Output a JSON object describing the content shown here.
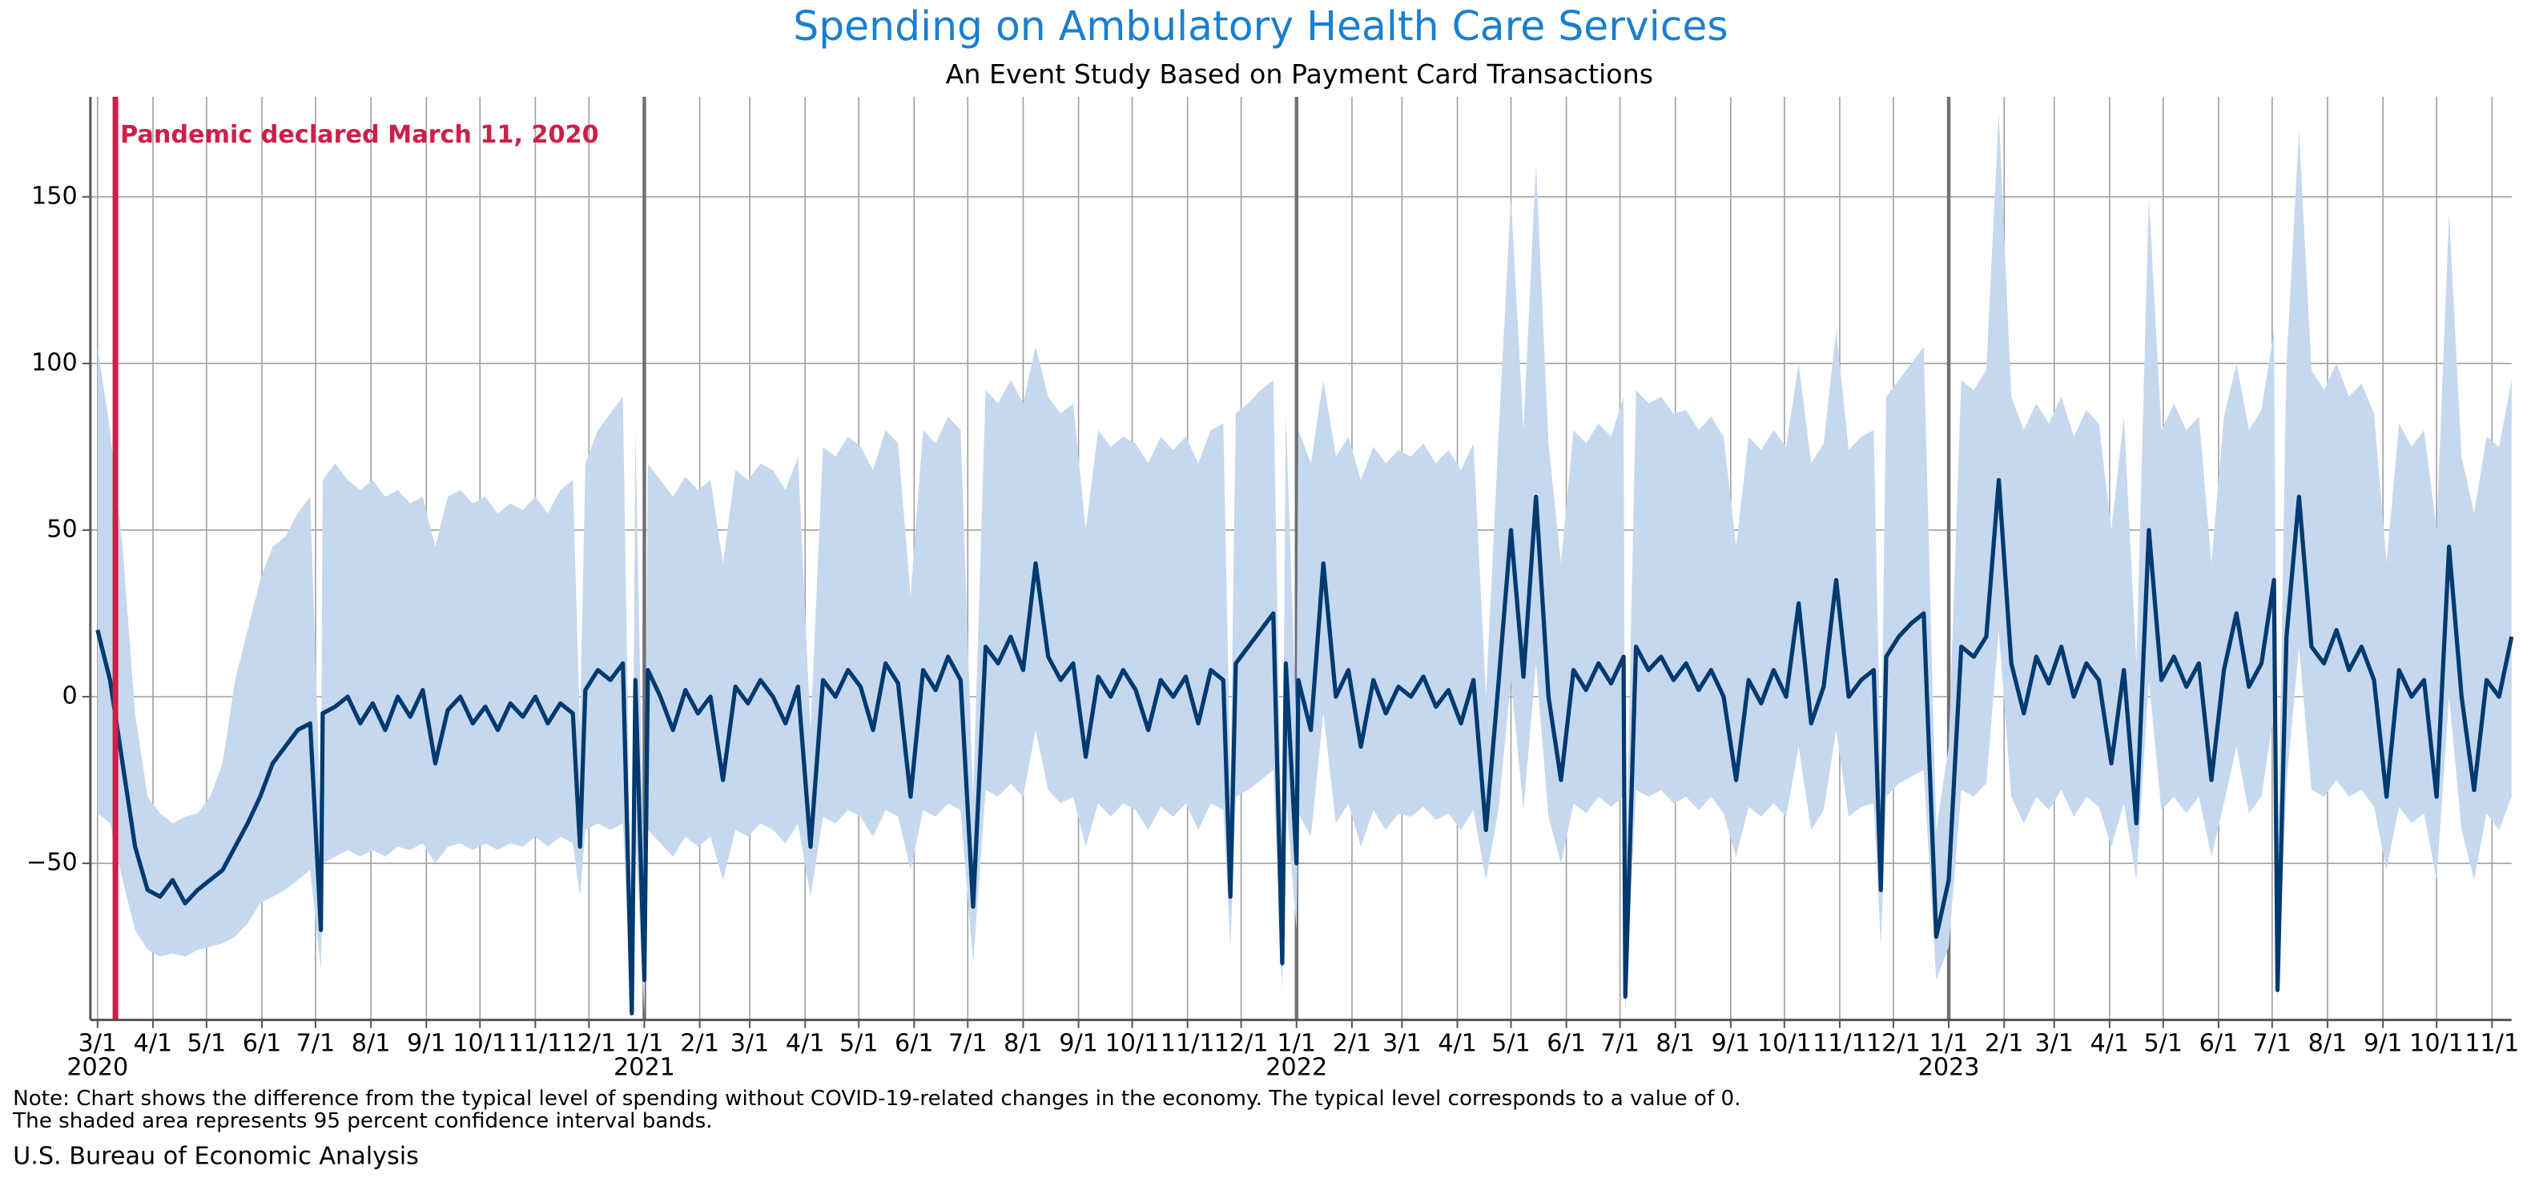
{
  "chart_data": {
    "type": "line",
    "title": "Spending on Ambulatory Health Care Services",
    "subtitle": "An Event Study Based on Payment Card Transactions",
    "notes": [
      "Note: Chart shows the difference from the typical level of spending without COVID-19-related changes in the economy. The typical level corresponds to a value of 0.",
      "The shaded area represents 95 percent confidence interval bands."
    ],
    "source": "U.S. Bureau of Economic Analysis",
    "color": "#003a70",
    "band_color": "#c5d8ee",
    "grid": true,
    "events": [
      {
        "x": "2020-03-11",
        "label": "Pandemic declared March 11, 2020",
        "color": "#cc1f4a"
      }
    ],
    "xlim": [
      "2020-02-26",
      "2023-11-12"
    ],
    "ylim": [
      -97,
      180
    ],
    "yticks": [
      {
        "value": -50,
        "label": "−50"
      },
      0,
      50,
      100,
      150
    ],
    "xticks": [
      {
        "value": "2020-03-01",
        "label": "3/1"
      },
      {
        "value": "2020-04-01",
        "label": "4/1"
      },
      {
        "value": "2020-05-01",
        "label": "5/1"
      },
      {
        "value": "2020-06-01",
        "label": "6/1"
      },
      {
        "value": "2020-07-01",
        "label": "7/1"
      },
      {
        "value": "2020-08-01",
        "label": "8/1"
      },
      {
        "value": "2020-09-01",
        "label": "9/1"
      },
      {
        "value": "2020-10-01",
        "label": "10/1"
      },
      {
        "value": "2020-11-01",
        "label": "11/1"
      },
      {
        "value": "2020-12-01",
        "label": "12/1"
      },
      {
        "value": "2021-01-01",
        "label": "1/1"
      },
      {
        "value": "2021-02-01",
        "label": "2/1"
      },
      {
        "value": "2021-03-01",
        "label": "3/1"
      },
      {
        "value": "2021-04-01",
        "label": "4/1"
      },
      {
        "value": "2021-05-01",
        "label": "5/1"
      },
      {
        "value": "2021-06-01",
        "label": "6/1"
      },
      {
        "value": "2021-07-01",
        "label": "7/1"
      },
      {
        "value": "2021-08-01",
        "label": "8/1"
      },
      {
        "value": "2021-09-01",
        "label": "9/1"
      },
      {
        "value": "2021-10-01",
        "label": "10/1"
      },
      {
        "value": "2021-11-01",
        "label": "11/1"
      },
      {
        "value": "2021-12-01",
        "label": "12/1"
      },
      {
        "value": "2022-01-01",
        "label": "1/1"
      },
      {
        "value": "2022-02-01",
        "label": "2/1"
      },
      {
        "value": "2022-03-01",
        "label": "3/1"
      },
      {
        "value": "2022-04-01",
        "label": "4/1"
      },
      {
        "value": "2022-05-01",
        "label": "5/1"
      },
      {
        "value": "2022-06-01",
        "label": "6/1"
      },
      {
        "value": "2022-07-01",
        "label": "7/1"
      },
      {
        "value": "2022-08-01",
        "label": "8/1"
      },
      {
        "value": "2022-09-01",
        "label": "9/1"
      },
      {
        "value": "2022-10-01",
        "label": "10/1"
      },
      {
        "value": "2022-11-01",
        "label": "11/1"
      },
      {
        "value": "2022-12-01",
        "label": "12/1"
      },
      {
        "value": "2023-01-01",
        "label": "1/1"
      },
      {
        "value": "2023-02-01",
        "label": "2/1"
      },
      {
        "value": "2023-03-01",
        "label": "3/1"
      },
      {
        "value": "2023-04-01",
        "label": "4/1"
      },
      {
        "value": "2023-05-01",
        "label": "5/1"
      },
      {
        "value": "2023-06-01",
        "label": "6/1"
      },
      {
        "value": "2023-07-01",
        "label": "7/1"
      },
      {
        "value": "2023-08-01",
        "label": "8/1"
      },
      {
        "value": "2023-09-01",
        "label": "9/1"
      },
      {
        "value": "2023-10-01",
        "label": "10/1"
      },
      {
        "value": "2023-11-01",
        "label": "11/1"
      }
    ],
    "xtick_years": [
      {
        "value": "2020-03-01",
        "label": "2020"
      },
      {
        "value": "2021-01-01",
        "label": "2021"
      },
      {
        "value": "2022-01-01",
        "label": "2022"
      },
      {
        "value": "2023-01-01",
        "label": "2023"
      }
    ],
    "x": [
      "2020-03-01",
      "2020-03-08",
      "2020-03-15",
      "2020-03-22",
      "2020-03-29",
      "2020-04-05",
      "2020-04-12",
      "2020-04-19",
      "2020-04-26",
      "2020-05-03",
      "2020-05-10",
      "2020-05-17",
      "2020-05-24",
      "2020-05-31",
      "2020-06-07",
      "2020-06-14",
      "2020-06-21",
      "2020-06-28",
      "2020-07-04",
      "2020-07-05",
      "2020-07-12",
      "2020-07-19",
      "2020-07-26",
      "2020-08-02",
      "2020-08-09",
      "2020-08-16",
      "2020-08-23",
      "2020-08-30",
      "2020-09-06",
      "2020-09-13",
      "2020-09-20",
      "2020-09-27",
      "2020-10-04",
      "2020-10-11",
      "2020-10-18",
      "2020-10-25",
      "2020-11-01",
      "2020-11-08",
      "2020-11-15",
      "2020-11-22",
      "2020-11-26",
      "2020-11-29",
      "2020-12-06",
      "2020-12-13",
      "2020-12-20",
      "2020-12-25",
      "2020-12-27",
      "2021-01-01",
      "2021-01-03",
      "2021-01-10",
      "2021-01-17",
      "2021-01-24",
      "2021-01-31",
      "2021-02-07",
      "2021-02-14",
      "2021-02-21",
      "2021-02-28",
      "2021-03-07",
      "2021-03-14",
      "2021-03-21",
      "2021-03-28",
      "2021-04-04",
      "2021-04-11",
      "2021-04-18",
      "2021-04-25",
      "2021-05-02",
      "2021-05-09",
      "2021-05-16",
      "2021-05-23",
      "2021-05-30",
      "2021-06-06",
      "2021-06-13",
      "2021-06-20",
      "2021-06-27",
      "2021-07-04",
      "2021-07-11",
      "2021-07-18",
      "2021-07-25",
      "2021-08-01",
      "2021-08-08",
      "2021-08-15",
      "2021-08-22",
      "2021-08-29",
      "2021-09-05",
      "2021-09-12",
      "2021-09-19",
      "2021-09-26",
      "2021-10-03",
      "2021-10-10",
      "2021-10-17",
      "2021-10-24",
      "2021-10-31",
      "2021-11-07",
      "2021-11-14",
      "2021-11-21",
      "2021-11-25",
      "2021-11-28",
      "2021-12-05",
      "2021-12-12",
      "2021-12-19",
      "2021-12-24",
      "2021-12-26",
      "2022-01-01",
      "2022-01-02",
      "2022-01-09",
      "2022-01-16",
      "2022-01-23",
      "2022-01-30",
      "2022-02-06",
      "2022-02-13",
      "2022-02-20",
      "2022-02-27",
      "2022-03-06",
      "2022-03-13",
      "2022-03-20",
      "2022-03-27",
      "2022-04-03",
      "2022-04-10",
      "2022-04-17",
      "2022-04-24",
      "2022-05-01",
      "2022-05-08",
      "2022-05-15",
      "2022-05-22",
      "2022-05-29",
      "2022-06-05",
      "2022-06-12",
      "2022-06-19",
      "2022-06-26",
      "2022-07-03",
      "2022-07-04",
      "2022-07-10",
      "2022-07-17",
      "2022-07-24",
      "2022-07-31",
      "2022-08-07",
      "2022-08-14",
      "2022-08-21",
      "2022-08-28",
      "2022-09-04",
      "2022-09-11",
      "2022-09-18",
      "2022-09-25",
      "2022-10-02",
      "2022-10-09",
      "2022-10-16",
      "2022-10-23",
      "2022-10-30",
      "2022-11-06",
      "2022-11-13",
      "2022-11-20",
      "2022-11-24",
      "2022-11-27",
      "2022-12-04",
      "2022-12-11",
      "2022-12-18",
      "2022-12-25",
      "2023-01-01",
      "2023-01-08",
      "2023-01-15",
      "2023-01-22",
      "2023-01-29",
      "2023-02-05",
      "2023-02-12",
      "2023-02-19",
      "2023-02-26",
      "2023-03-05",
      "2023-03-12",
      "2023-03-19",
      "2023-03-26",
      "2023-04-02",
      "2023-04-09",
      "2023-04-16",
      "2023-04-23",
      "2023-04-30",
      "2023-05-07",
      "2023-05-14",
      "2023-05-21",
      "2023-05-28",
      "2023-06-04",
      "2023-06-11",
      "2023-06-18",
      "2023-06-25",
      "2023-07-02",
      "2023-07-04",
      "2023-07-09",
      "2023-07-16",
      "2023-07-23",
      "2023-07-30",
      "2023-08-06",
      "2023-08-13",
      "2023-08-20",
      "2023-08-27",
      "2023-09-03",
      "2023-09-10",
      "2023-09-17",
      "2023-09-24",
      "2023-10-01",
      "2023-10-08",
      "2023-10-15",
      "2023-10-22",
      "2023-10-29",
      "2023-11-05",
      "2023-11-12"
    ],
    "values": [
      20,
      5,
      -20,
      -45,
      -58,
      -60,
      -55,
      -62,
      -58,
      -55,
      -52,
      -45,
      -38,
      -30,
      -20,
      -15,
      -10,
      -8,
      -70,
      -5,
      -3,
      0,
      -8,
      -2,
      -10,
      0,
      -6,
      2,
      -20,
      -4,
      0,
      -8,
      -3,
      -10,
      -2,
      -6,
      0,
      -8,
      -2,
      -5,
      -45,
      2,
      8,
      5,
      10,
      -95,
      5,
      -85,
      8,
      0,
      -10,
      2,
      -5,
      0,
      -25,
      3,
      -2,
      5,
      0,
      -8,
      3,
      -45,
      5,
      0,
      8,
      3,
      -10,
      10,
      4,
      -30,
      8,
      2,
      12,
      5,
      -63,
      15,
      10,
      18,
      8,
      40,
      12,
      5,
      10,
      -18,
      6,
      0,
      8,
      2,
      -10,
      5,
      0,
      6,
      -8,
      8,
      5,
      -60,
      10,
      15,
      20,
      25,
      -80,
      10,
      -50,
      5,
      -10,
      40,
      0,
      8,
      -15,
      5,
      -5,
      3,
      0,
      6,
      -3,
      2,
      -8,
      5,
      -40,
      4,
      50,
      6,
      60,
      0,
      -25,
      8,
      2,
      10,
      4,
      12,
      -90,
      15,
      8,
      12,
      5,
      10,
      2,
      8,
      0,
      -25,
      5,
      -2,
      8,
      0,
      28,
      -8,
      3,
      35,
      0,
      5,
      8,
      -58,
      12,
      18,
      22,
      25,
      -72,
      -55,
      15,
      12,
      18,
      65,
      10,
      -5,
      12,
      4,
      15,
      0,
      10,
      5,
      -20,
      8,
      -38,
      50,
      5,
      12,
      3,
      10,
      -25,
      8,
      25,
      3,
      10,
      35,
      -88,
      18,
      60,
      15,
      10,
      20,
      8,
      15,
      5,
      -30,
      8,
      0,
      5,
      -30,
      45,
      0,
      -28,
      5,
      0,
      18
    ],
    "band_lower": [
      -35,
      -38,
      -55,
      -70,
      -76,
      -78,
      -77,
      -78,
      -76,
      -75,
      -74,
      -72,
      -68,
      -62,
      -60,
      -58,
      -55,
      -52,
      -82,
      -50,
      -48,
      -46,
      -48,
      -46,
      -48,
      -45,
      -46,
      -44,
      -50,
      -45,
      -44,
      -46,
      -44,
      -46,
      -44,
      -45,
      -42,
      -45,
      -42,
      -44,
      -60,
      -40,
      -38,
      -40,
      -38,
      -97,
      -42,
      -95,
      -40,
      -44,
      -48,
      -42,
      -45,
      -42,
      -55,
      -40,
      -42,
      -38,
      -40,
      -44,
      -38,
      -60,
      -36,
      -38,
      -34,
      -36,
      -42,
      -34,
      -36,
      -52,
      -34,
      -36,
      -32,
      -34,
      -80,
      -28,
      -30,
      -26,
      -30,
      -10,
      -28,
      -32,
      -30,
      -45,
      -32,
      -36,
      -32,
      -34,
      -40,
      -33,
      -36,
      -32,
      -40,
      -32,
      -34,
      -75,
      -30,
      -28,
      -25,
      -22,
      -88,
      -30,
      -70,
      -35,
      -42,
      -5,
      -38,
      -32,
      -45,
      -34,
      -40,
      -35,
      -36,
      -33,
      -37,
      -35,
      -40,
      -34,
      -55,
      -34,
      5,
      -34,
      10,
      -36,
      -50,
      -32,
      -35,
      -30,
      -33,
      -30,
      -95,
      -28,
      -30,
      -28,
      -32,
      -30,
      -34,
      -30,
      -35,
      -48,
      -33,
      -36,
      -32,
      -36,
      -15,
      -40,
      -34,
      -10,
      -36,
      -33,
      -32,
      -75,
      -30,
      -26,
      -24,
      -22,
      -85,
      -75,
      -28,
      -30,
      -26,
      20,
      -30,
      -38,
      -30,
      -34,
      -28,
      -36,
      -30,
      -33,
      -45,
      -32,
      -55,
      5,
      -34,
      -30,
      -35,
      -30,
      -48,
      -32,
      -15,
      -35,
      -30,
      -5,
      -93,
      -26,
      15,
      -28,
      -30,
      -25,
      -30,
      -28,
      -33,
      -52,
      -33,
      -38,
      -35,
      -55,
      0,
      -40,
      -55,
      -35,
      -40,
      -30
    ],
    "band_upper": [
      105,
      80,
      45,
      -5,
      -30,
      -35,
      -38,
      -36,
      -35,
      -30,
      -20,
      5,
      20,
      35,
      45,
      48,
      55,
      60,
      -40,
      65,
      70,
      65,
      62,
      65,
      60,
      62,
      58,
      60,
      45,
      60,
      62,
      58,
      60,
      55,
      58,
      56,
      60,
      55,
      62,
      65,
      -10,
      70,
      80,
      85,
      90,
      -80,
      80,
      -60,
      70,
      65,
      60,
      66,
      62,
      65,
      40,
      68,
      65,
      70,
      68,
      62,
      72,
      -10,
      75,
      72,
      78,
      75,
      68,
      80,
      76,
      30,
      80,
      76,
      84,
      80,
      -30,
      92,
      88,
      95,
      88,
      105,
      90,
      85,
      88,
      50,
      80,
      75,
      78,
      76,
      70,
      78,
      74,
      78,
      70,
      80,
      82,
      -25,
      85,
      88,
      92,
      95,
      -55,
      85,
      -10,
      80,
      70,
      95,
      72,
      78,
      65,
      75,
      70,
      74,
      72,
      76,
      70,
      74,
      68,
      76,
      0,
      78,
      150,
      80,
      160,
      76,
      40,
      80,
      76,
      82,
      78,
      90,
      -60,
      92,
      88,
      90,
      85,
      86,
      80,
      84,
      78,
      45,
      78,
      74,
      80,
      75,
      100,
      70,
      76,
      110,
      74,
      78,
      80,
      -25,
      90,
      95,
      100,
      105,
      -40,
      -15,
      95,
      92,
      98,
      175,
      90,
      80,
      88,
      82,
      90,
      78,
      86,
      82,
      50,
      84,
      10,
      150,
      80,
      88,
      80,
      84,
      40,
      84,
      100,
      80,
      86,
      110,
      -55,
      100,
      170,
      98,
      92,
      100,
      90,
      94,
      85,
      40,
      82,
      75,
      80,
      50,
      145,
      72,
      55,
      78,
      75,
      95
    ]
  }
}
